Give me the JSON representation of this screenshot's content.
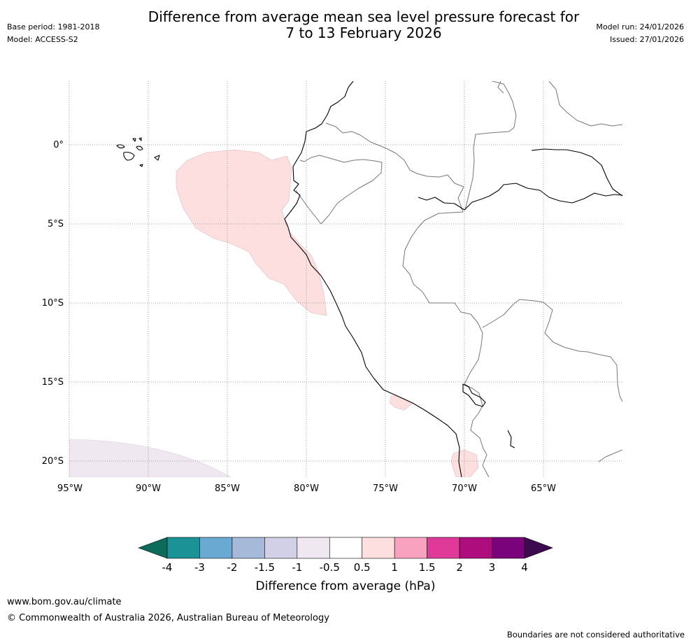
{
  "header": {
    "title_line1": "Difference from average mean sea level pressure forecast for",
    "title_line2": "7 to 13 February 2026",
    "base_period": "Base period: 1981-2018",
    "model": "Model: ACCESS-S2",
    "model_run": "Model run: 24/01/2026",
    "issued": "Issued: 27/01/2026"
  },
  "map": {
    "lat_labels": [
      "0°",
      "5°S",
      "10°S",
      "15°S",
      "20°S"
    ],
    "lon_labels": [
      "95°W",
      "90°W",
      "85°W",
      "80°W",
      "75°W",
      "70°W",
      "65°W"
    ],
    "extent": {
      "lon_min": -95,
      "lon_max": -60,
      "lat_min": -21,
      "lat_max": 4
    },
    "anomaly_regions": [
      {
        "name": "offshore-ecuador-peru",
        "category": "0.5 to 1"
      },
      {
        "name": "southern-peru-coast",
        "category": "0.5 to 1"
      },
      {
        "name": "northern-chile",
        "category": "0.5 to 1"
      },
      {
        "name": "southwest-corner",
        "category": "-1 to -0.5"
      }
    ]
  },
  "colorbar": {
    "title": "Difference from average (hPa)",
    "tick_labels": [
      "-4",
      "-3",
      "-2",
      "-1.5",
      "-1",
      "-0.5",
      "0.5",
      "1",
      "1.5",
      "2",
      "3",
      "4"
    ],
    "under_color": "#0c6b5a",
    "over_color": "#3d0a52",
    "colors": [
      "#1a9296",
      "#69a9d2",
      "#a6b9d9",
      "#d1d0e6",
      "#efe8f0",
      "#ffffff",
      "#fddfdf",
      "#f9a2bf",
      "#df3a9a",
      "#ad0d7d",
      "#7a037c"
    ]
  },
  "footer": {
    "url": "www.bom.gov.au/climate",
    "copyright": "© Commonwealth of Australia 2026, Australian Bureau of Meteorology",
    "disclaimer": "Boundaries are not considered authoritative"
  }
}
